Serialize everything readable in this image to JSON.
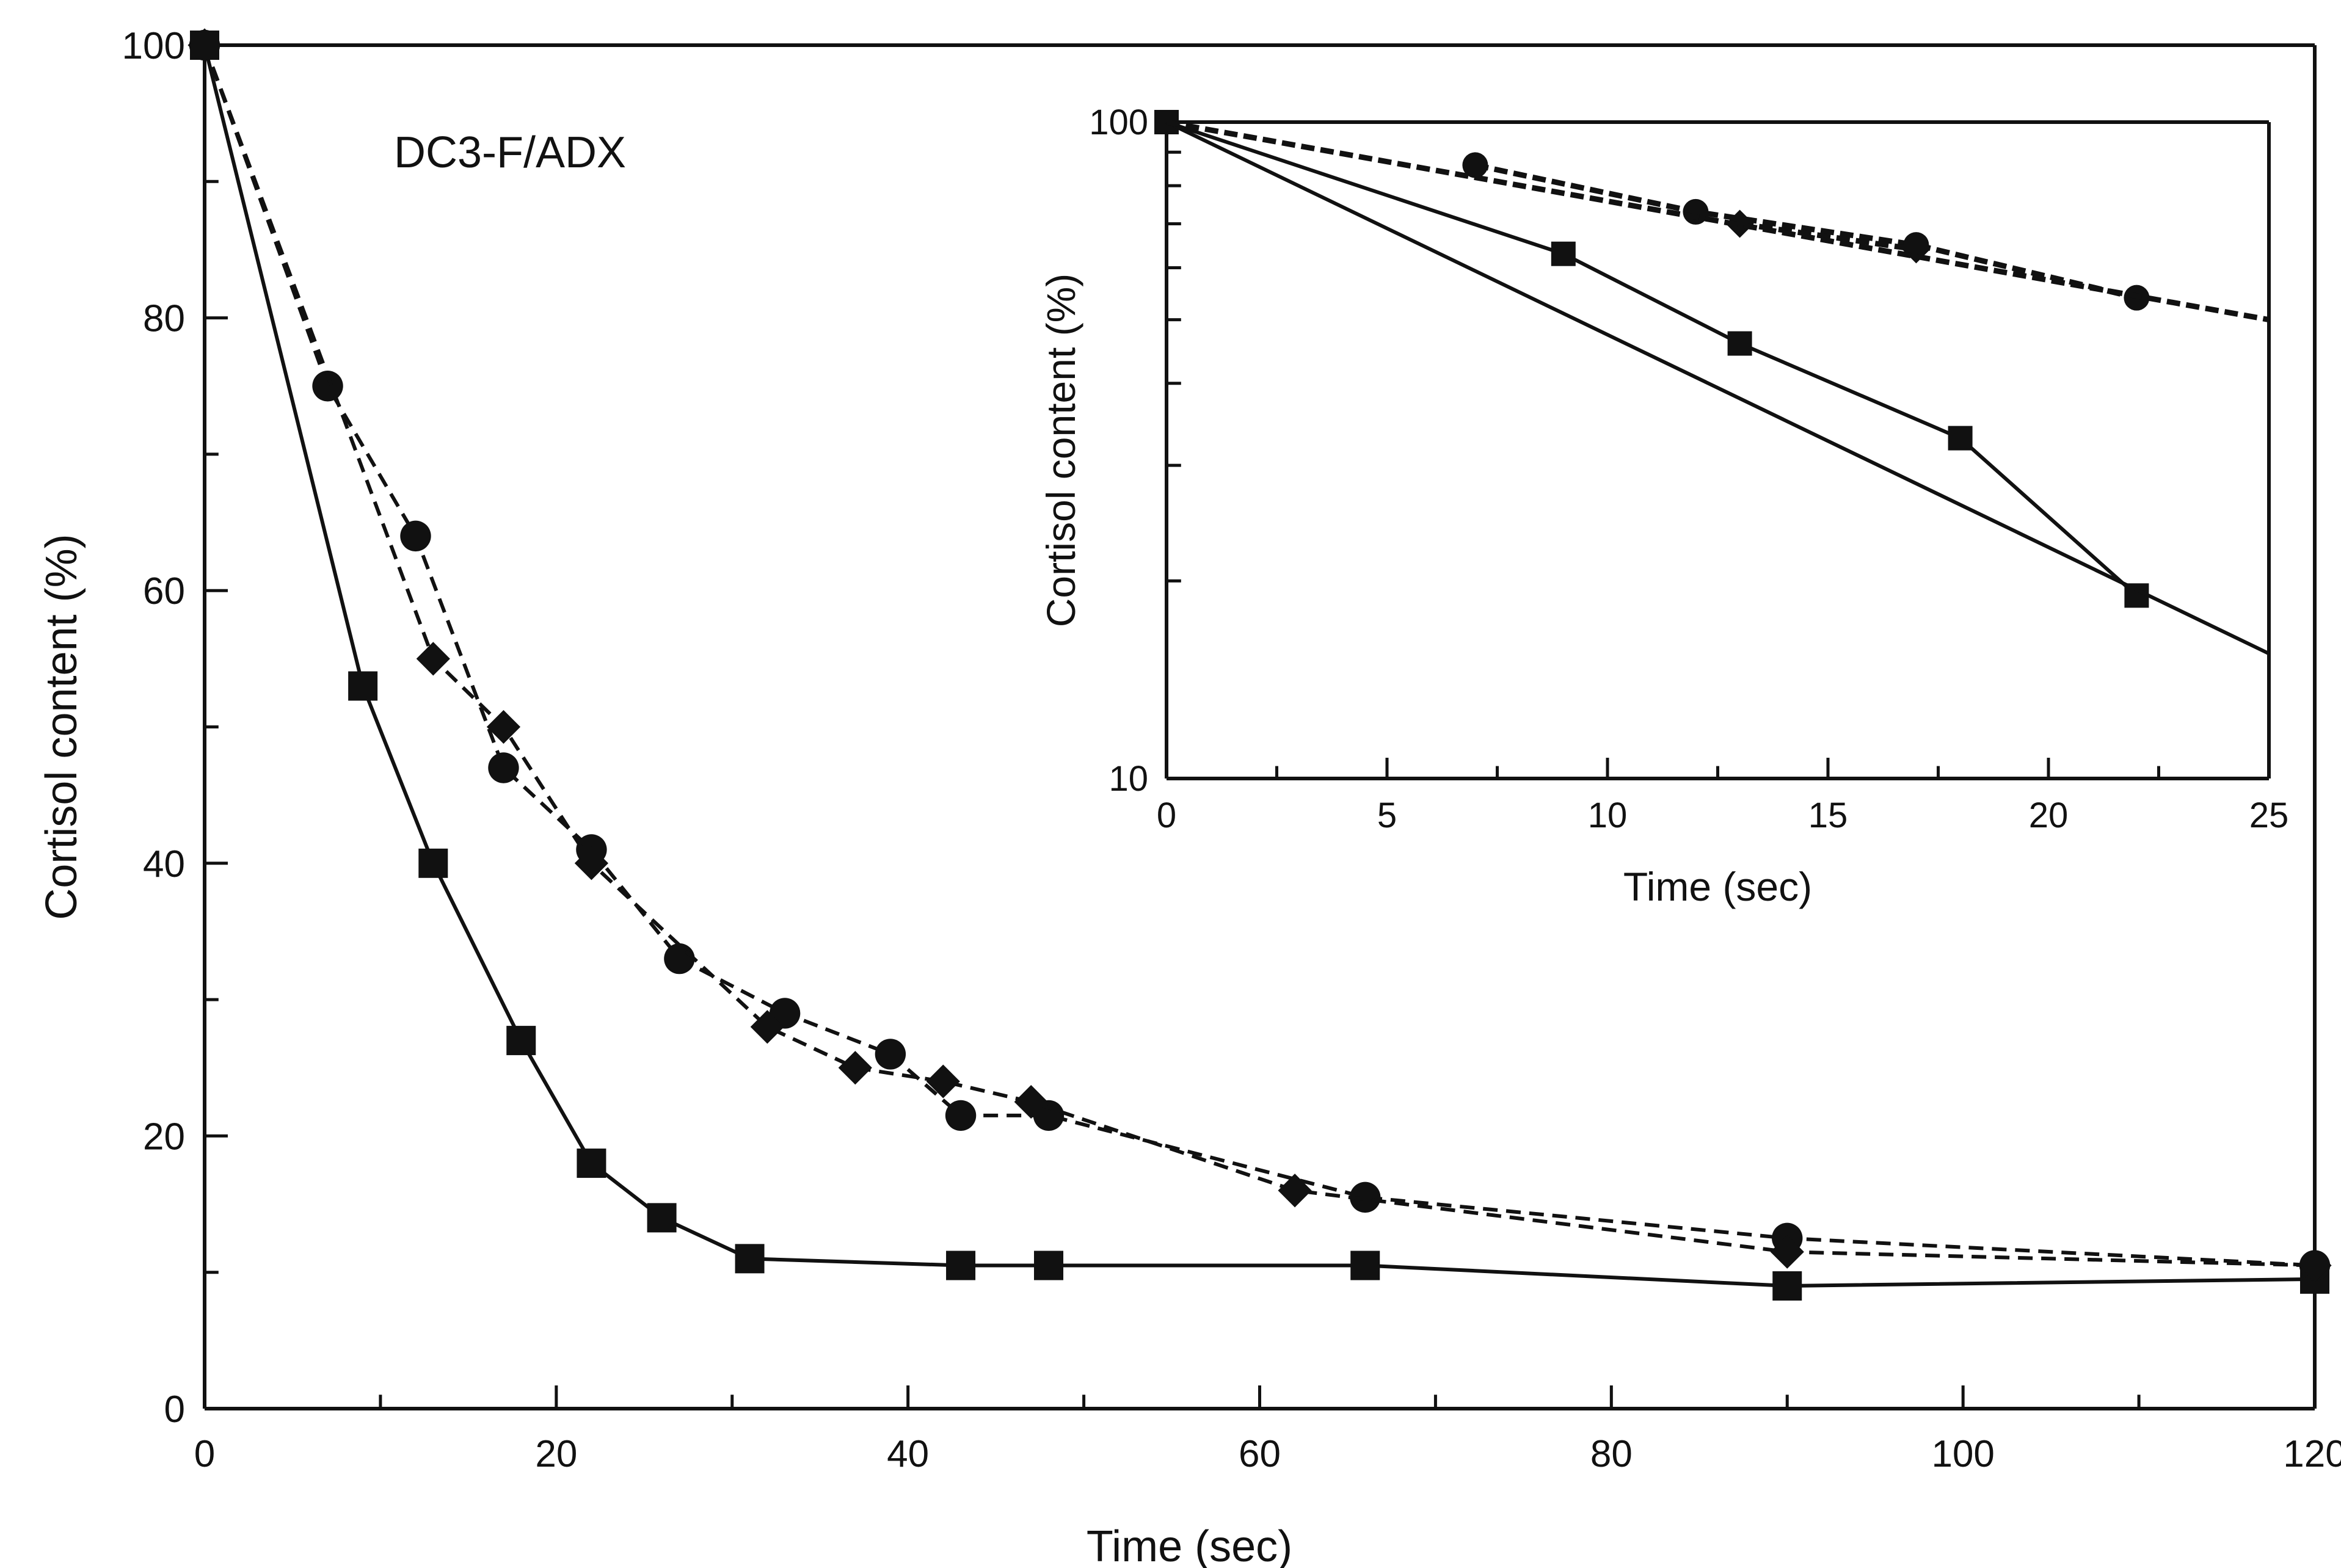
{
  "chart_data": [
    {
      "type": "line",
      "title": "DC3-F/ADX",
      "xlabel": "Time (sec)",
      "ylabel": "Cortisol content (%)",
      "xlim": [
        0,
        120
      ],
      "ylim": [
        0,
        100
      ],
      "xticks": [
        0,
        20,
        40,
        60,
        80,
        100,
        120
      ],
      "yticks": [
        0,
        20,
        40,
        60,
        80,
        100
      ],
      "grid": false,
      "series": [
        {
          "marker": "square",
          "line": "solid",
          "x": [
            0,
            9,
            13,
            18,
            22,
            26,
            31,
            43,
            48,
            66,
            90,
            120
          ],
          "y": [
            100,
            53,
            40,
            27,
            18,
            14,
            11,
            10.5,
            10.5,
            10.5,
            9,
            9.5
          ]
        },
        {
          "marker": "circle",
          "line": "dashed",
          "x": [
            0,
            7,
            12,
            17,
            22,
            27,
            33,
            39,
            43,
            48,
            66,
            90,
            120
          ],
          "y": [
            100,
            75,
            64,
            47,
            41,
            33,
            29,
            26,
            21.5,
            21.5,
            15.5,
            12.5,
            10.5
          ]
        },
        {
          "marker": "diamond",
          "line": "dashed",
          "x": [
            0,
            13,
            17,
            22,
            32,
            37,
            42,
            47,
            62,
            90,
            120
          ],
          "y": [
            100,
            55,
            50,
            40,
            28,
            25,
            24,
            22.5,
            16,
            11.5,
            10.5
          ]
        }
      ]
    },
    {
      "type": "line",
      "xlabel": "Time (sec)",
      "ylabel": "Cortisol content (%)",
      "xlim": [
        0,
        25
      ],
      "ylim": [
        10,
        100
      ],
      "yscale": "log",
      "xticks": [
        0,
        5,
        10,
        15,
        20,
        25
      ],
      "yticks": [
        10,
        100
      ],
      "grid": false,
      "series": [
        {
          "marker": "square",
          "line": "solid",
          "x": [
            0,
            9,
            13,
            18,
            22
          ],
          "y": [
            100,
            63,
            46,
            33,
            19
          ]
        },
        {
          "marker": "circle",
          "line": "dashed",
          "x": [
            7,
            12,
            17,
            22
          ],
          "y": [
            86,
            73,
            65,
            54
          ]
        },
        {
          "marker": "diamond",
          "line": "dashed",
          "x": [
            13,
            17
          ],
          "y": [
            70,
            64
          ]
        },
        {
          "marker": "none",
          "line": "solid",
          "x": [
            0,
            25
          ],
          "y": [
            100,
            15.5
          ]
        },
        {
          "marker": "none",
          "line": "dashed",
          "x": [
            0,
            25
          ],
          "y": [
            100,
            50
          ]
        }
      ]
    }
  ]
}
